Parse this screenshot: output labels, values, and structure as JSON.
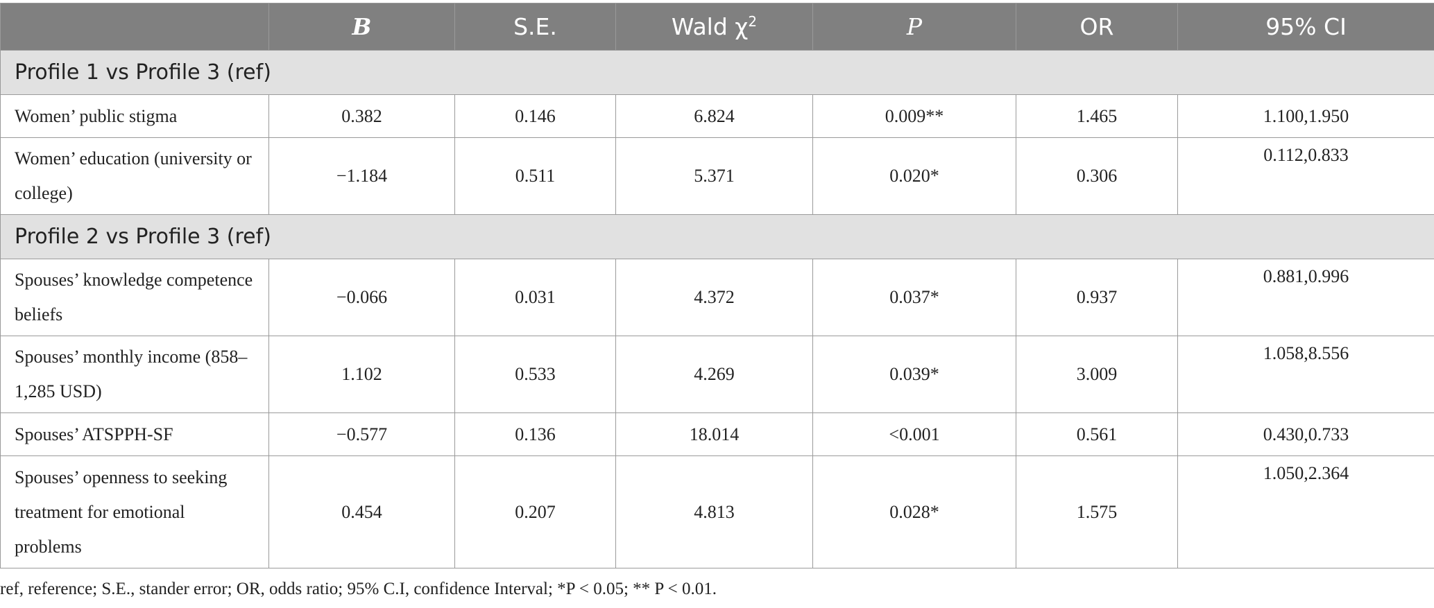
{
  "table": {
    "headers": {
      "col0": "",
      "b": "B",
      "se": "S.E.",
      "wald": "Wald χ",
      "wald_sup": "2",
      "p": "P",
      "or": "OR",
      "ci": "95% CI"
    },
    "sections": [
      {
        "title": "Profile 1 vs Profile 3 (ref)",
        "rows": [
          {
            "label": "Women’ public stigma",
            "b": "0.382",
            "se": "0.146",
            "wald": "6.824",
            "p": "0.009**",
            "or": "1.465",
            "ci": "1.100,1.950"
          },
          {
            "label": "Women’ education (university or college)",
            "b": "−1.184",
            "se": "0.511",
            "wald": "5.371",
            "p": "0.020*",
            "or": "0.306",
            "ci": "0.112,0.833"
          }
        ]
      },
      {
        "title": "Profile 2 vs Profile 3 (ref)",
        "rows": [
          {
            "label": "Spouses’ knowledge competence beliefs",
            "b": "−0.066",
            "se": "0.031",
            "wald": "4.372",
            "p": "0.037*",
            "or": "0.937",
            "ci": "0.881,0.996"
          },
          {
            "label": "Spouses’ monthly income (858–1,285 USD)",
            "b": "1.102",
            "se": "0.533",
            "wald": "4.269",
            "p": "0.039*",
            "or": "3.009",
            "ci": "1.058,8.556"
          },
          {
            "label": "Spouses’ ATSPPH-SF",
            "b": "−0.577",
            "se": "0.136",
            "wald": "18.014",
            "p": "<0.001",
            "or": "0.561",
            "ci": "0.430,0.733"
          },
          {
            "label": "Spouses’ openness to seeking treatment for emotional problems",
            "b": "0.454",
            "se": "0.207",
            "wald": "4.813",
            "p": "0.028*",
            "or": "1.575",
            "ci": "1.050,2.364"
          }
        ]
      }
    ]
  },
  "footnote": "ref, reference; S.E., stander error; OR, odds ratio; 95% C.I, confidence Interval; *P < 0.05; ** P < 0.01."
}
